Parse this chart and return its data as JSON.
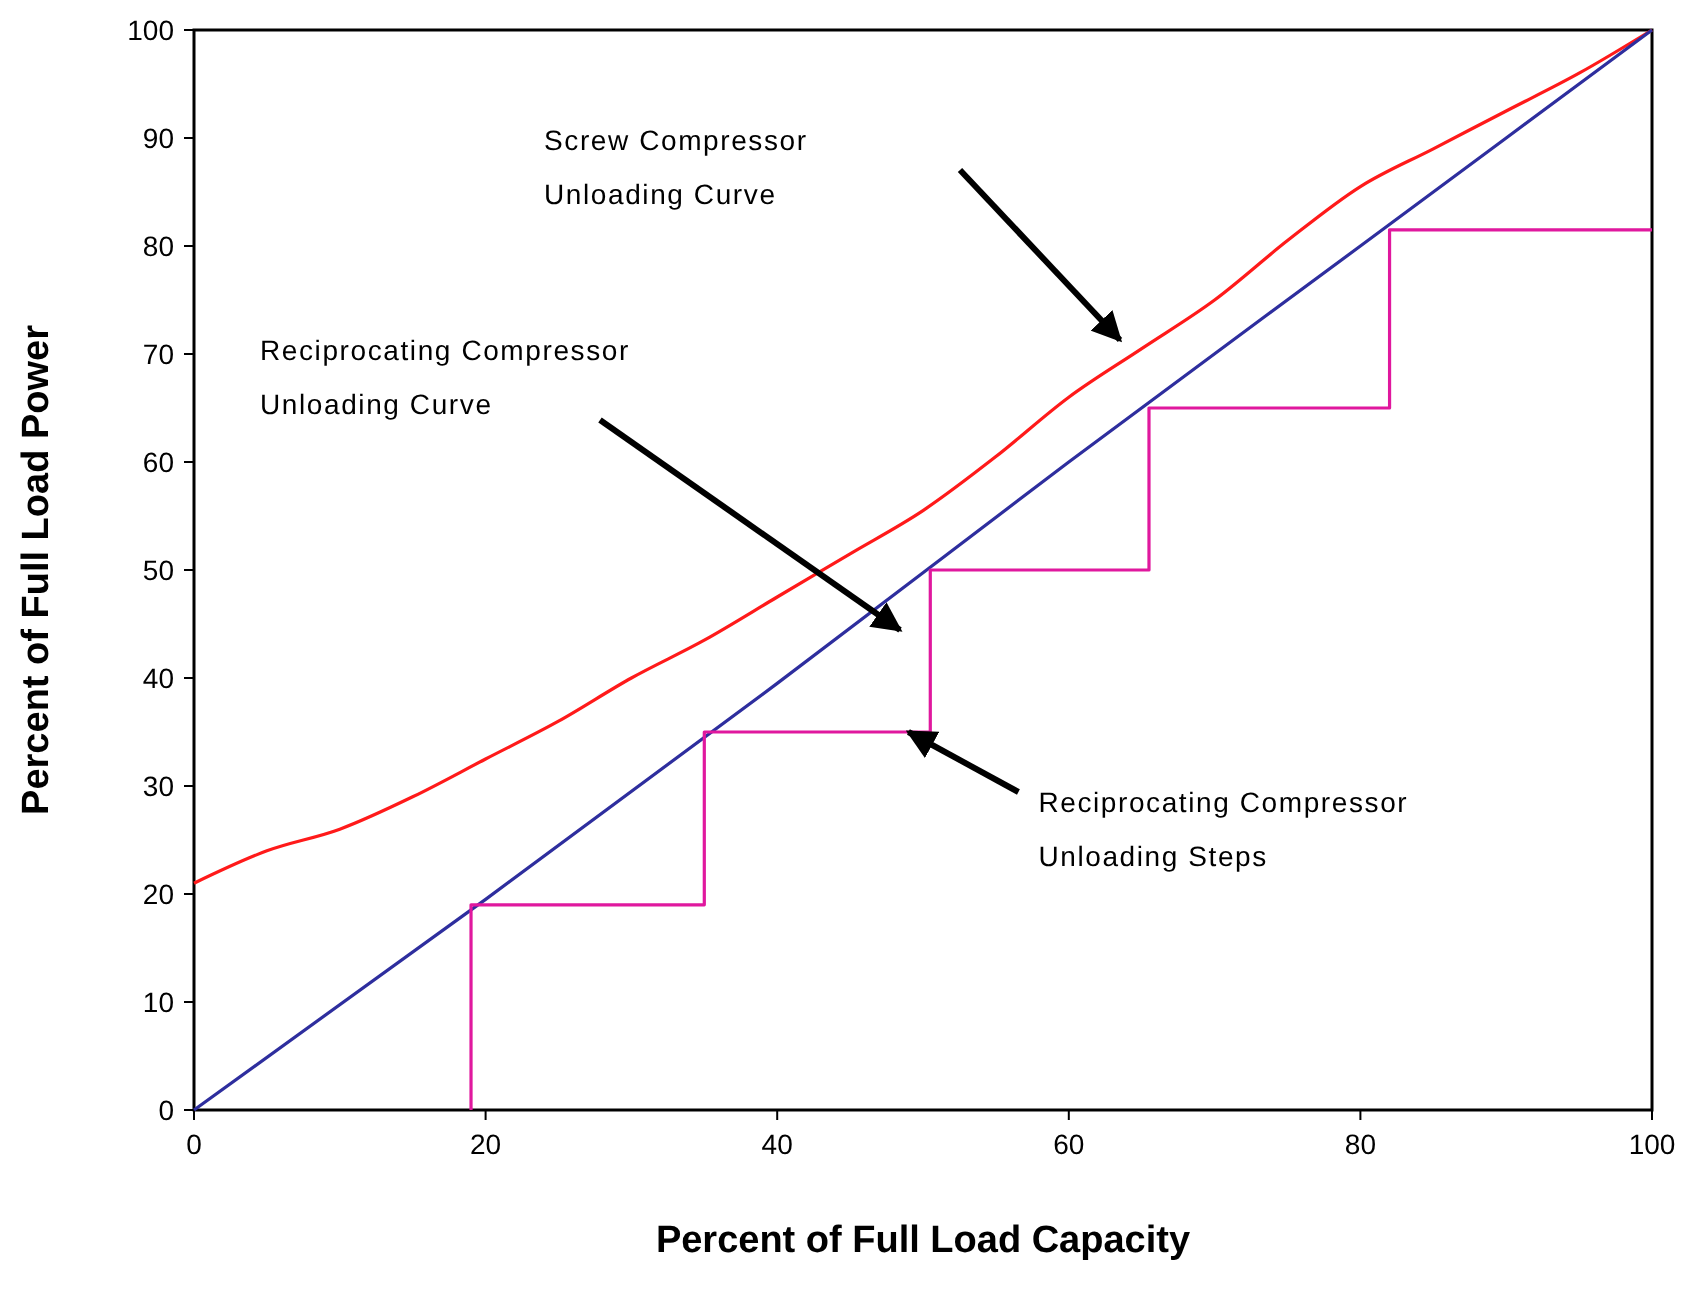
{
  "chart_data": {
    "type": "line",
    "xlabel": "Percent of Full Load Capacity",
    "ylabel": "Percent of Full Load Power",
    "xlim": [
      0,
      100
    ],
    "ylim": [
      0,
      100
    ],
    "xticks": [
      0,
      20,
      40,
      60,
      80,
      100
    ],
    "yticks": [
      0,
      10,
      20,
      30,
      40,
      50,
      60,
      70,
      80,
      90,
      100
    ],
    "series": [
      {
        "color": "#ff1a1a",
        "x": [
          0,
          5,
          10,
          15,
          20,
          25,
          30,
          35,
          40,
          45,
          50,
          55,
          60,
          65,
          70,
          75,
          80,
          85,
          90,
          95,
          100
        ],
        "values": [
          21,
          24,
          26,
          29,
          32.5,
          36,
          40,
          43.5,
          47.5,
          51.5,
          55.5,
          60.5,
          66,
          70.5,
          75,
          80.5,
          85.5,
          89,
          92.5,
          96,
          100
        ]
      },
      {
        "color": "#2e2e9e",
        "x": [
          0,
          20,
          40,
          60,
          80,
          100
        ],
        "values": [
          0,
          19.5,
          39.5,
          60,
          80,
          100
        ]
      },
      {
        "type": "step",
        "color": "#e0189e",
        "x": [
          19,
          19,
          35,
          50.5,
          65.5,
          82,
          100
        ],
        "values": [
          0,
          19,
          35,
          50,
          65,
          81.5,
          81.5
        ]
      }
    ],
    "annotations": [
      "Screw Compressor\nUnloading Curve",
      "Reciprocating Compressor\nUnloading Curve",
      {
        "text": "Reciprocating Compressor\nUnloading Steps",
        "x": 49,
        "y": 35
      }
    ]
  }
}
